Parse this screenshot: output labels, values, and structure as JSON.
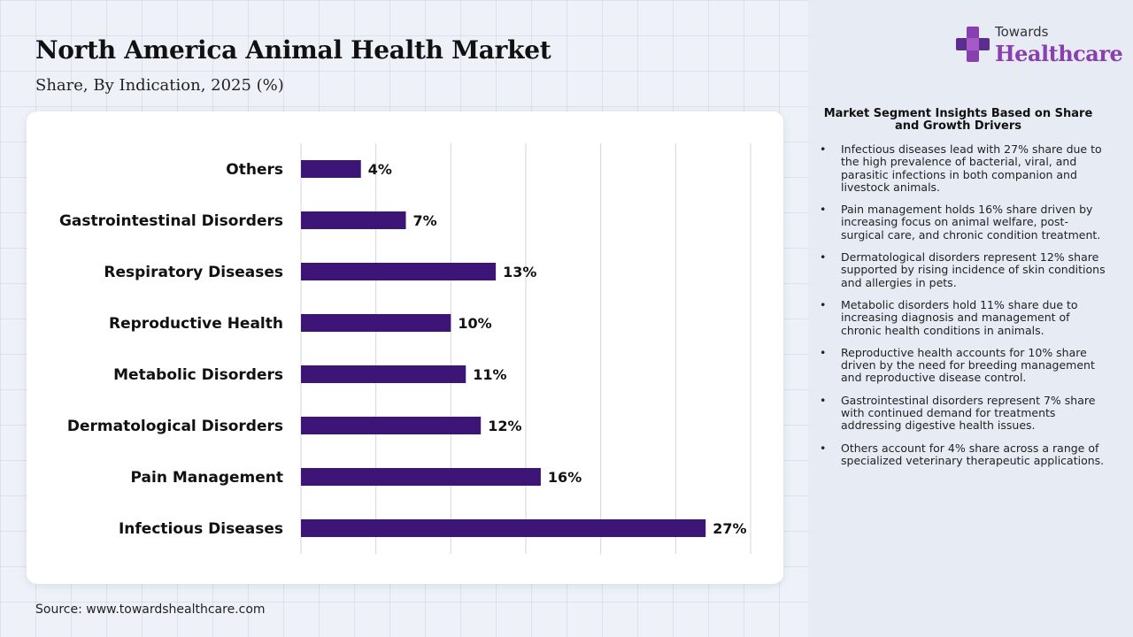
{
  "header": {
    "title": "North America Animal Health Market",
    "subtitle": "Share, By Indication, 2025 (%)"
  },
  "brand": {
    "line1": "Towards",
    "line2": "Healthcare",
    "colors": {
      "primary": "#8a3fb0",
      "secondary": "#5b2d8c"
    }
  },
  "source": "Source: www.towardshealthcare.com",
  "chart_data": {
    "type": "bar",
    "orientation": "horizontal",
    "categories": [
      "Others",
      "Gastrointestinal Disorders",
      "Respiratory Diseases",
      "Reproductive Health",
      "Metabolic Disorders",
      "Dermatological Disorders",
      "Pain Management",
      "Infectious Diseases"
    ],
    "values": [
      4,
      7,
      13,
      10,
      11,
      12,
      16,
      27
    ],
    "data_labels": [
      "4%",
      "7%",
      "13%",
      "10%",
      "11%",
      "12%",
      "16%",
      "27%"
    ],
    "xlim": [
      0,
      30
    ],
    "grid": true,
    "legend": "none",
    "bar_color": "#3d1577"
  },
  "insights": {
    "title": "Market Segment Insights Based on Share and Growth Drivers",
    "items": [
      "Infectious diseases lead with 27% share due to the high prevalence of bacterial, viral, and parasitic infections in both companion and livestock animals.",
      "Pain management holds 16% share driven by increasing focus on animal welfare, post-surgical care, and chronic condition treatment.",
      "Dermatological disorders represent 12% share supported by rising incidence of skin conditions and allergies in pets.",
      "Metabolic disorders hold 11% share due to increasing diagnosis and management of chronic health conditions in animals.",
      "Reproductive health accounts for 10% share driven by the need for breeding management and reproductive disease control.",
      "Gastrointestinal disorders represent 7% share with continued demand for treatments addressing digestive health issues.",
      "Others account for 4% share across a range of specialized veterinary therapeutic applications."
    ]
  }
}
